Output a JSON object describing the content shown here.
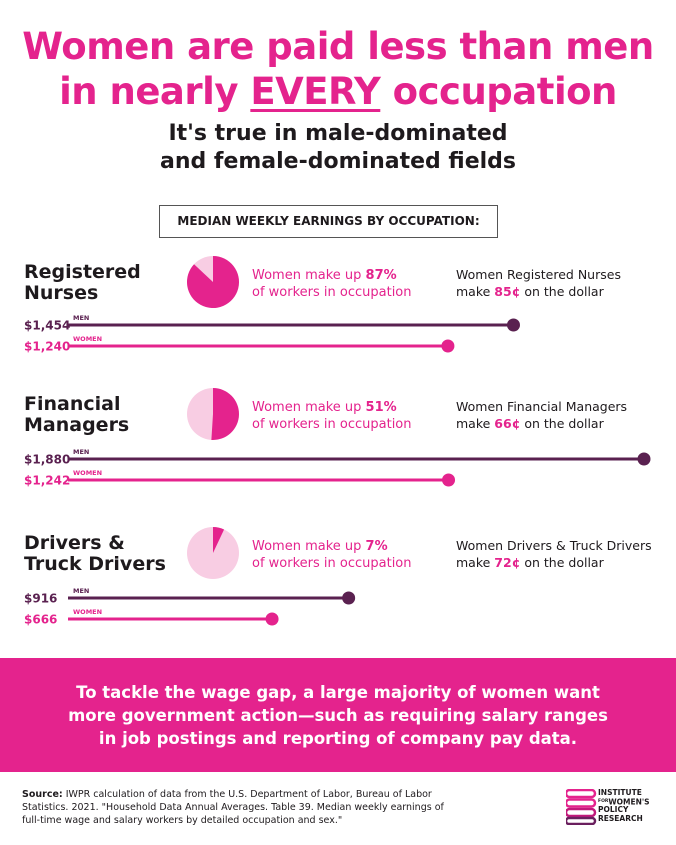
{
  "header": {
    "title_line1": "Women are paid less than men",
    "title_line2_before": "in nearly ",
    "title_line2_emph": "EVERY",
    "title_line2_after": " occupation",
    "subtitle_line1": "It's true in male-dominated",
    "subtitle_line2": "and female-dominated fields",
    "box_label": "MEDIAN WEEKLY EARNINGS BY OCCUPATION:"
  },
  "chart_data": {
    "type": "bar",
    "title": "MEDIAN WEEKLY EARNINGS BY OCCUPATION:",
    "series_labels": [
      "MEN",
      "WOMEN"
    ],
    "xlim": [
      0,
      1880
    ],
    "colors": {
      "men": "#5a2150",
      "women": "#e4238d",
      "pie_light": "#f8cde3"
    },
    "occupations": [
      {
        "name_line1": "Registered",
        "name_line2": "Nurses",
        "men": 1454,
        "women": 1240,
        "men_label": "$1,454",
        "women_label": "$1,240",
        "women_share": 87,
        "share_prefix": "Women make up ",
        "share_value": "87%",
        "share_line2": "of workers in occupation",
        "ratio_line1": "Women Registered Nurses",
        "ratio_prefix": "make ",
        "ratio_value": "85¢",
        "ratio_suffix": " on the dollar"
      },
      {
        "name_line1": "Financial",
        "name_line2": "Managers",
        "men": 1880,
        "women": 1242,
        "men_label": "$1,880",
        "women_label": "$1,242",
        "women_share": 51,
        "share_prefix": "Women make up ",
        "share_value": "51%",
        "share_line2": "of workers in occupation",
        "ratio_line1": "Women Financial Managers",
        "ratio_prefix": "make ",
        "ratio_value": "66¢",
        "ratio_suffix": " on the dollar"
      },
      {
        "name_line1": "Drivers &",
        "name_line2": "Truck Drivers",
        "men": 916,
        "women": 666,
        "men_label": "$916",
        "women_label": "$666",
        "women_share": 7,
        "share_prefix": "Women make up ",
        "share_value": "7%",
        "share_line2": "of workers in occupation",
        "ratio_line1": "Women Drivers & Truck Drivers",
        "ratio_prefix": "make ",
        "ratio_value": "72¢",
        "ratio_suffix": " on the dollar"
      }
    ]
  },
  "banner": {
    "line1": "To tackle the wage gap, a large majority of women want",
    "line2": "more government action—such as requiring salary ranges",
    "line3": "in job postings and reporting of company pay data."
  },
  "source": {
    "label": "Source:",
    "line1": " IWPR calculation of data from the U.S. Department of Labor, Bureau of Labor",
    "line2": "Statistics. 2021. \"Household Data Annual Averages. Table 39. Median weekly earnings of",
    "line3": "full-time wage and salary workers by detailed occupation and sex.\""
  },
  "logo": {
    "line1": "INSTITUTE",
    "for": "FOR",
    "line2": "WOMEN'S",
    "line3": "POLICY",
    "line4": "RESEARCH"
  }
}
